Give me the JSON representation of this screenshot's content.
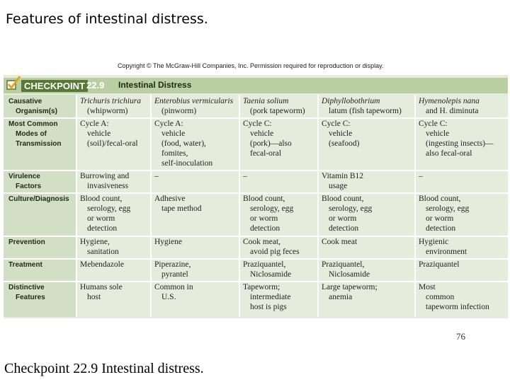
{
  "slide_title": "Features of intestinal distress.",
  "copyright": "Copyright © The McGraw-Hill Companies, Inc. Permission required for reproduction or display.",
  "checkpoint": {
    "word": "CHECKPOINT",
    "number": "22.9",
    "title": "Intestinal Distress"
  },
  "table": {
    "rows": [
      {
        "label": [
          "Causative",
          "Organism(s)"
        ],
        "cells": [
          [
            "Trichuris trichiura",
            "(whipworm)"
          ],
          [
            "Enterobius vermicularis",
            "(pinworm)"
          ],
          [
            "Taenia solium",
            "(pork tapeworm)"
          ],
          [
            "Diphyllobothrium",
            "latum (fish tapeworm)"
          ],
          [
            "Hymenolepis nana",
            "and H. diminuta"
          ]
        ]
      },
      {
        "label": [
          "Most Common",
          "Modes of",
          "Transmission"
        ],
        "cells": [
          [
            "Cycle A:",
            "vehicle",
            "(soil)/fecal-oral"
          ],
          [
            "Cycle A:",
            "vehicle",
            "(food, water),",
            "fomites,",
            "self-inoculation"
          ],
          [
            "Cycle C:",
            "vehicle",
            "(pork)—also",
            "fecal-oral"
          ],
          [
            "Cycle C:",
            "vehicle",
            "(seafood)"
          ],
          [
            "Cycle C:",
            "vehicle",
            "(ingesting insects)—",
            "also fecal-oral"
          ]
        ]
      },
      {
        "label": [
          "Virulence",
          "Factors"
        ],
        "cells": [
          [
            "Burrowing and",
            "invasiveness"
          ],
          [
            "–"
          ],
          [
            "–"
          ],
          [
            "Vitamin B12",
            "usage"
          ],
          [
            "–"
          ]
        ]
      },
      {
        "label": [
          "Culture/Diagnosis"
        ],
        "cells": [
          [
            "Blood count,",
            "serology, egg",
            "or worm",
            "detection"
          ],
          [
            "Adhesive",
            "tape method"
          ],
          [
            "Blood count,",
            "serology, egg",
            "or worm",
            "detection"
          ],
          [
            "Blood count,",
            "serology, egg",
            "or worm",
            "detection"
          ],
          [
            "Blood count,",
            "serology, egg",
            "or worm",
            "detection"
          ]
        ]
      },
      {
        "label": [
          "Prevention"
        ],
        "cells": [
          [
            "Hygiene,",
            "sanitation"
          ],
          [
            "Hygiene"
          ],
          [
            "Cook meat,",
            "avoid pig feces"
          ],
          [
            "Cook meat"
          ],
          [
            "Hygienic",
            "environment"
          ]
        ]
      },
      {
        "label": [
          "Treatment"
        ],
        "cells": [
          [
            "Mebendazole"
          ],
          [
            "Piperazine,",
            "pyrantel"
          ],
          [
            "Praziquantel,",
            "Niclosamide"
          ],
          [
            "Praziquantel,",
            "Niclosamide"
          ],
          [
            "Praziquantel"
          ]
        ]
      },
      {
        "label": [
          "Distinctive",
          "Features"
        ],
        "cells": [
          [
            "Humans sole",
            "host"
          ],
          [
            "Common in",
            "U.S."
          ],
          [
            "Tapeworm;",
            "intermediate",
            "host is pigs"
          ],
          [
            "Large tapeworm;",
            "anemia"
          ],
          [
            "Most",
            "common",
            "tapeworm infection"
          ]
        ]
      }
    ]
  },
  "caption": "Checkpoint 22.9 Intestinal distress.",
  "page_number": "76"
}
